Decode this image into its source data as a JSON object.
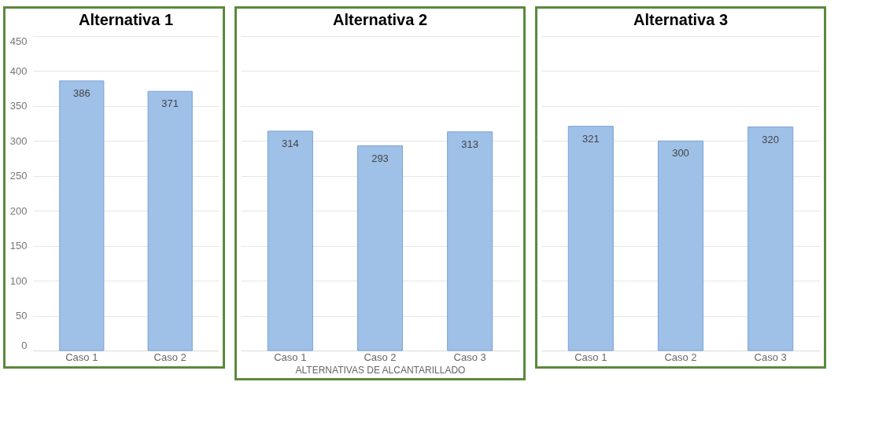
{
  "chart_data": [
    {
      "type": "bar",
      "title": "Alternativa 1",
      "categories": [
        "Caso 1",
        "Caso 2"
      ],
      "values": [
        386,
        371
      ],
      "color": "#9fc0e7",
      "ylim": [
        0,
        450
      ],
      "yticks": [
        0,
        50,
        100,
        150,
        200,
        250,
        300,
        350,
        400,
        450
      ],
      "grid": "y",
      "data_labels": true
    },
    {
      "type": "bar",
      "title": "Alternativa 2",
      "xlabel": "ALTERNATIVAS DE ALCANTARILLADO",
      "categories": [
        "Caso 1",
        "Caso 2",
        "Caso 3"
      ],
      "values": [
        314,
        293,
        313
      ],
      "color": "#9fc0e7",
      "ylim": [
        0,
        450
      ],
      "yticks": [
        0,
        50,
        100,
        150,
        200,
        250,
        300,
        350,
        400,
        450
      ],
      "grid": "y",
      "data_labels": true,
      "tick_labels": "x"
    },
    {
      "type": "bar",
      "title": "Alternativa 3",
      "categories": [
        "Caso 1",
        "Caso 2",
        "Caso 3"
      ],
      "values": [
        321,
        300,
        320
      ],
      "color": "#9fc0e7",
      "ylim": [
        0,
        450
      ],
      "yticks": [
        0,
        50,
        100,
        150,
        200,
        250,
        300,
        350,
        400,
        450
      ],
      "grid": "y",
      "data_labels": true,
      "tick_labels": "x"
    }
  ]
}
